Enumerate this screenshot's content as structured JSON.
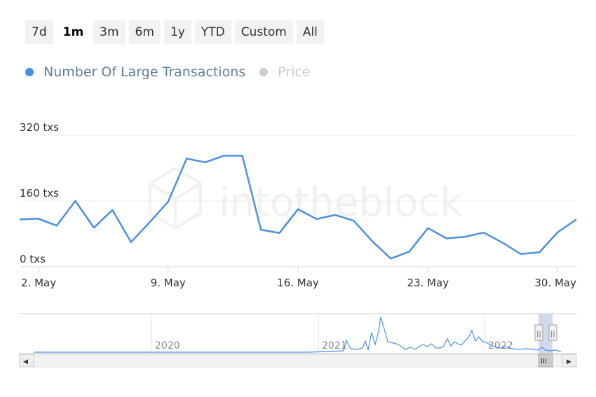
{
  "range_selector": {
    "buttons": [
      {
        "label": "7d",
        "active": false
      },
      {
        "label": "1m",
        "active": true
      },
      {
        "label": "3m",
        "active": false
      },
      {
        "label": "6m",
        "active": false
      },
      {
        "label": "1y",
        "active": false
      },
      {
        "label": "YTD",
        "active": false
      },
      {
        "label": "Custom",
        "active": false
      },
      {
        "label": "All",
        "active": false
      }
    ]
  },
  "legend": {
    "items": [
      {
        "label": "Number Of Large Transactions",
        "color": "#4a90e2",
        "visible": true
      },
      {
        "label": "Price",
        "color": "#cccccc",
        "visible": false
      }
    ]
  },
  "watermark": "intotheblock",
  "colors": {
    "series": "#4a90e2",
    "navigator_mask": "#c6d0e6",
    "axis": "#cfd8e6",
    "grid": "#e6e6e6"
  },
  "chart_data": {
    "type": "line",
    "x_start": "2022-05-01",
    "x": [
      "May 1",
      "May 2",
      "May 3",
      "May 4",
      "May 5",
      "May 6",
      "May 7",
      "May 8",
      "May 9",
      "May 10",
      "May 11",
      "May 12",
      "May 13",
      "May 14",
      "May 15",
      "May 16",
      "May 17",
      "May 18",
      "May 19",
      "May 20",
      "May 21",
      "May 22",
      "May 23",
      "May 24",
      "May 25",
      "May 26",
      "May 27",
      "May 28",
      "May 29",
      "May 30",
      "May 31"
    ],
    "series": [
      {
        "name": "Number Of Large Transactions",
        "values": [
          115,
          117,
          100,
          160,
          95,
          138,
          60,
          108,
          158,
          263,
          254,
          270,
          270,
          90,
          82,
          140,
          116,
          126,
          112,
          62,
          20,
          37,
          94,
          69,
          73,
          83,
          59,
          31,
          35,
          84,
          115
        ]
      }
    ],
    "y_ticks": [
      "0 txs",
      "160 txs",
      "320 txs"
    ],
    "y_tick_values": [
      0,
      160,
      320
    ],
    "ylim": [
      0,
      320
    ],
    "x_ticks": [
      "2. May",
      "9. May",
      "16. May",
      "23. May",
      "30. May"
    ],
    "x_tick_dates": [
      "May 2",
      "May 9",
      "May 16",
      "May 23",
      "May 30"
    ],
    "grid": true,
    "legend_position": "top-left"
  },
  "navigator": {
    "year_labels": [
      "2020",
      "2021",
      "2022"
    ],
    "scroll_handle_label": "III",
    "left_arrow": "◀",
    "right_arrow": "▶",
    "handle_grip": "||"
  }
}
